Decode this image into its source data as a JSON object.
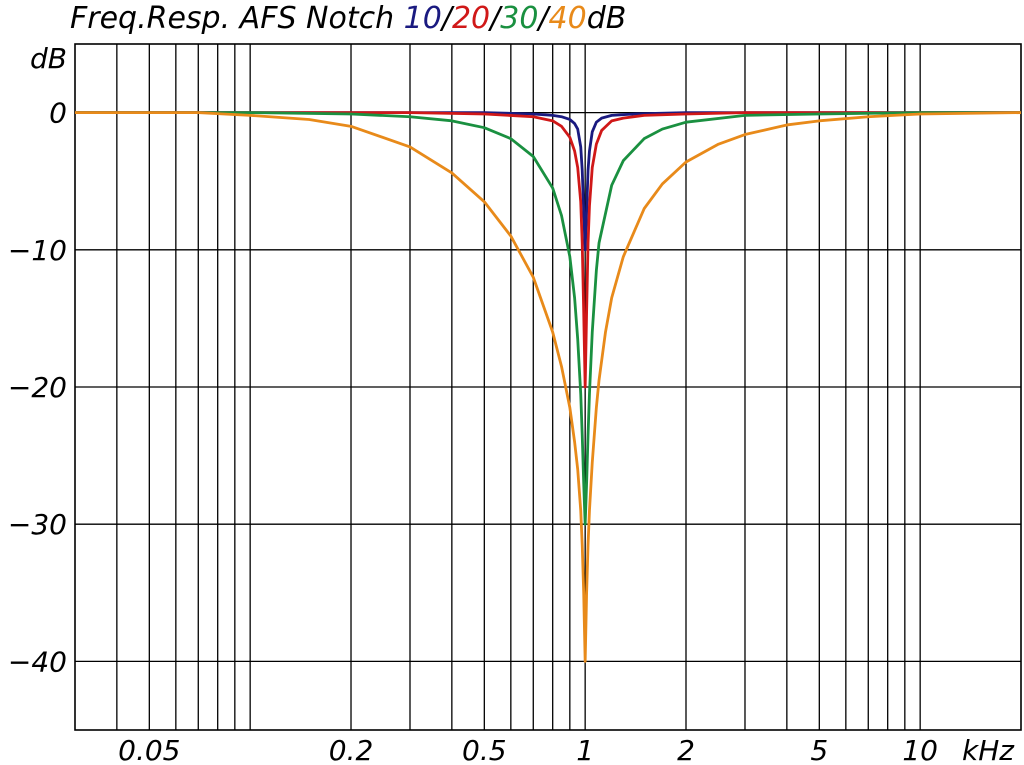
{
  "chart_data": {
    "type": "line",
    "title": {
      "prefix": "Freq.Resp. AFS Notch ",
      "parts": [
        {
          "text": "10",
          "color": "#1a1a80"
        },
        {
          "text": "/",
          "color": "#000000"
        },
        {
          "text": "20",
          "color": "#d01818"
        },
        {
          "text": "/",
          "color": "#000000"
        },
        {
          "text": "30",
          "color": "#1a9040"
        },
        {
          "text": "/",
          "color": "#000000"
        },
        {
          "text": "40",
          "color": "#e88a1a"
        },
        {
          "text": "dB",
          "color": "#000000"
        }
      ]
    },
    "ylabel": "dB",
    "xunit": "kHz",
    "x_scale": "log",
    "xlim": [
      0.03,
      20
    ],
    "ylim": [
      -45,
      5
    ],
    "grid": true,
    "x_ticks": [
      {
        "value": 0.05,
        "label": "0.05"
      },
      {
        "value": 0.2,
        "label": "0.2"
      },
      {
        "value": 0.5,
        "label": "0.5"
      },
      {
        "value": 1,
        "label": "1"
      },
      {
        "value": 2,
        "label": "2"
      },
      {
        "value": 5,
        "label": "5"
      },
      {
        "value": 10,
        "label": "10"
      }
    ],
    "y_ticks": [
      {
        "value": 0,
        "label": "0"
      },
      {
        "value": -10,
        "label": "−10"
      },
      {
        "value": -20,
        "label": "−20"
      },
      {
        "value": -30,
        "label": "−30"
      },
      {
        "value": -40,
        "label": "−40"
      }
    ],
    "series": [
      {
        "color": "#1a1a80",
        "x": [
          0.03,
          0.5,
          0.7,
          0.8,
          0.85,
          0.9,
          0.93,
          0.95,
          0.97,
          0.98,
          0.99,
          1.0,
          1.01,
          1.02,
          1.03,
          1.05,
          1.08,
          1.12,
          1.2,
          1.4,
          2,
          5,
          20
        ],
        "y": [
          0,
          0,
          -0.1,
          -0.2,
          -0.3,
          -0.5,
          -0.8,
          -1.2,
          -2.5,
          -4.2,
          -7.2,
          -10,
          -7.2,
          -4.2,
          -2.8,
          -1.4,
          -0.7,
          -0.4,
          -0.2,
          -0.1,
          0,
          0,
          0
        ]
      },
      {
        "color": "#d01818",
        "x": [
          0.03,
          0.3,
          0.5,
          0.7,
          0.8,
          0.85,
          0.9,
          0.93,
          0.95,
          0.97,
          0.98,
          0.99,
          1.0,
          1.01,
          1.02,
          1.03,
          1.05,
          1.08,
          1.12,
          1.2,
          1.3,
          1.5,
          2,
          3,
          5,
          20
        ],
        "y": [
          0,
          0,
          -0.1,
          -0.3,
          -0.6,
          -1.0,
          -1.8,
          -2.8,
          -4.0,
          -6.5,
          -9.5,
          -14.5,
          -20,
          -14.5,
          -9.5,
          -6.8,
          -4.0,
          -2.3,
          -1.3,
          -0.6,
          -0.4,
          -0.2,
          -0.1,
          0,
          0,
          0
        ]
      },
      {
        "color": "#1a9040",
        "x": [
          0.03,
          0.1,
          0.2,
          0.3,
          0.4,
          0.5,
          0.6,
          0.7,
          0.8,
          0.85,
          0.9,
          0.93,
          0.95,
          0.97,
          0.98,
          0.99,
          1.0,
          1.01,
          1.02,
          1.03,
          1.05,
          1.08,
          1.1,
          1.2,
          1.3,
          1.5,
          1.7,
          2,
          3,
          5,
          10,
          20
        ],
        "y": [
          0,
          0,
          -0.1,
          -0.3,
          -0.6,
          -1.1,
          -1.9,
          -3.2,
          -5.5,
          -7.5,
          -10.5,
          -13.5,
          -16.5,
          -20.5,
          -23.5,
          -27,
          -30,
          -27,
          -23.5,
          -20.5,
          -16,
          -11.5,
          -9.5,
          -5.3,
          -3.5,
          -1.9,
          -1.2,
          -0.7,
          -0.2,
          -0.1,
          0,
          0
        ]
      },
      {
        "color": "#e88a1a",
        "x": [
          0.03,
          0.05,
          0.07,
          0.1,
          0.15,
          0.2,
          0.3,
          0.4,
          0.5,
          0.6,
          0.7,
          0.8,
          0.85,
          0.9,
          0.93,
          0.95,
          0.97,
          0.98,
          0.99,
          1.0,
          1.01,
          1.02,
          1.03,
          1.05,
          1.08,
          1.1,
          1.15,
          1.2,
          1.3,
          1.5,
          1.7,
          2,
          2.5,
          3,
          4,
          5,
          7,
          10,
          20
        ],
        "y": [
          0,
          0,
          0,
          -0.2,
          -0.5,
          -1.0,
          -2.5,
          -4.4,
          -6.5,
          -9.0,
          -12,
          -16,
          -18.5,
          -21.5,
          -24,
          -26,
          -29,
          -31.5,
          -35,
          -40,
          -35,
          -31.5,
          -29,
          -25.5,
          -21.5,
          -19.5,
          -16,
          -13.5,
          -10.5,
          -7.0,
          -5.2,
          -3.6,
          -2.3,
          -1.6,
          -0.9,
          -0.6,
          -0.3,
          -0.1,
          0
        ]
      }
    ]
  }
}
